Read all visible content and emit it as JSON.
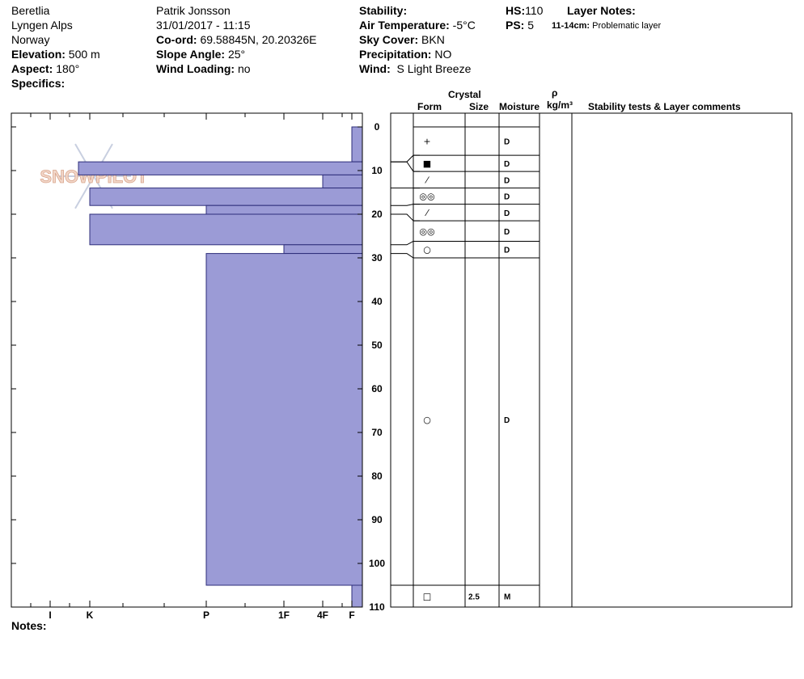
{
  "header": {
    "location": "Beretlia",
    "range": "Lyngen Alps",
    "country": "Norway",
    "elevation_label": "Elevation:",
    "elevation_value": "500 m",
    "aspect_label": "Aspect:",
    "aspect_value": "180°",
    "specifics_label": "Specifics:",
    "observer": "Patrik Jonsson",
    "datetime": "31/01/2017 - 11:15",
    "coord_label": "Co-ord:",
    "coord_value": "69.58845N, 20.20326E",
    "slope_label": "Slope Angle:",
    "slope_value": "25°",
    "wind_loading_label": "Wind Loading:",
    "wind_loading_value": "no",
    "stability_label": "Stability:",
    "air_temp_label": "Air Temperature:",
    "air_temp_value": "-5°C",
    "sky_label": "Sky Cover:",
    "sky_value": "BKN",
    "precip_label": "Precipitation:",
    "precip_value": "NO",
    "wind_label": "Wind:",
    "wind_value": "S Light Breeze",
    "hs_label": "HS:",
    "hs_value": "110",
    "ps_label": "PS:",
    "ps_value": "5",
    "layer_notes_label": "Layer Notes:",
    "layer_note_range": "11-14cm:",
    "layer_note_text": "Problematic layer"
  },
  "columns": {
    "crystal": "Crystal",
    "form": "Form",
    "size": "Size",
    "moisture": "Moisture",
    "rho": "ρ",
    "density_unit": "kg/m³",
    "comments": "Stability tests & Layer comments"
  },
  "watermark": "SNOWPILOT",
  "notes_label": "Notes:",
  "colors": {
    "bar_fill": "#9b9bd6",
    "bar_stroke": "#2e2e7a"
  },
  "chart_data": {
    "type": "bar",
    "title": "",
    "xlabel": "",
    "ylabel": "",
    "ylim": [
      0,
      110
    ],
    "y_ticks": [
      0,
      10,
      20,
      30,
      40,
      50,
      60,
      70,
      80,
      90,
      100,
      110
    ],
    "hardness_ticks": [
      "I",
      "K",
      "P",
      "1F",
      "4F",
      "F"
    ],
    "layers": [
      {
        "top": 0,
        "bottom": 8,
        "hardness": "F"
      },
      {
        "top": 8,
        "bottom": 11,
        "hardness": "K+"
      },
      {
        "top": 11,
        "bottom": 14,
        "hardness": "4F+"
      },
      {
        "top": 14,
        "bottom": 18,
        "hardness": "K"
      },
      {
        "top": 18,
        "bottom": 20,
        "hardness": "P"
      },
      {
        "top": 20,
        "bottom": 27,
        "hardness": "K"
      },
      {
        "top": 27,
        "bottom": 29,
        "hardness": "1F"
      },
      {
        "top": 29,
        "bottom": 105,
        "hardness": "P"
      },
      {
        "top": 105,
        "bottom": 110,
        "hardness": "F"
      }
    ],
    "layer_table": [
      {
        "top": 0,
        "bottom": 6.5,
        "form": "+",
        "size": "",
        "moisture": "D"
      },
      {
        "top": 6.5,
        "bottom": 10.2,
        "form": "■",
        "size": "",
        "moisture": "D"
      },
      {
        "top": 10.2,
        "bottom": 14,
        "form": "⁄",
        "size": "",
        "moisture": "D"
      },
      {
        "top": 14,
        "bottom": 17.7,
        "form": "◎◎",
        "size": "",
        "moisture": "D"
      },
      {
        "top": 17.7,
        "bottom": 21.5,
        "form": "⁄",
        "size": "",
        "moisture": "D"
      },
      {
        "top": 21.5,
        "bottom": 26.2,
        "form": "◎◎",
        "size": "",
        "moisture": "D"
      },
      {
        "top": 26.2,
        "bottom": 30,
        "form": "○",
        "size": "",
        "moisture": "D"
      },
      {
        "top": 30,
        "bottom": 105,
        "form": "○",
        "size": "",
        "moisture": "D"
      },
      {
        "top": 105,
        "bottom": 110,
        "form": "□",
        "size": "2.5",
        "moisture": "M"
      }
    ]
  }
}
